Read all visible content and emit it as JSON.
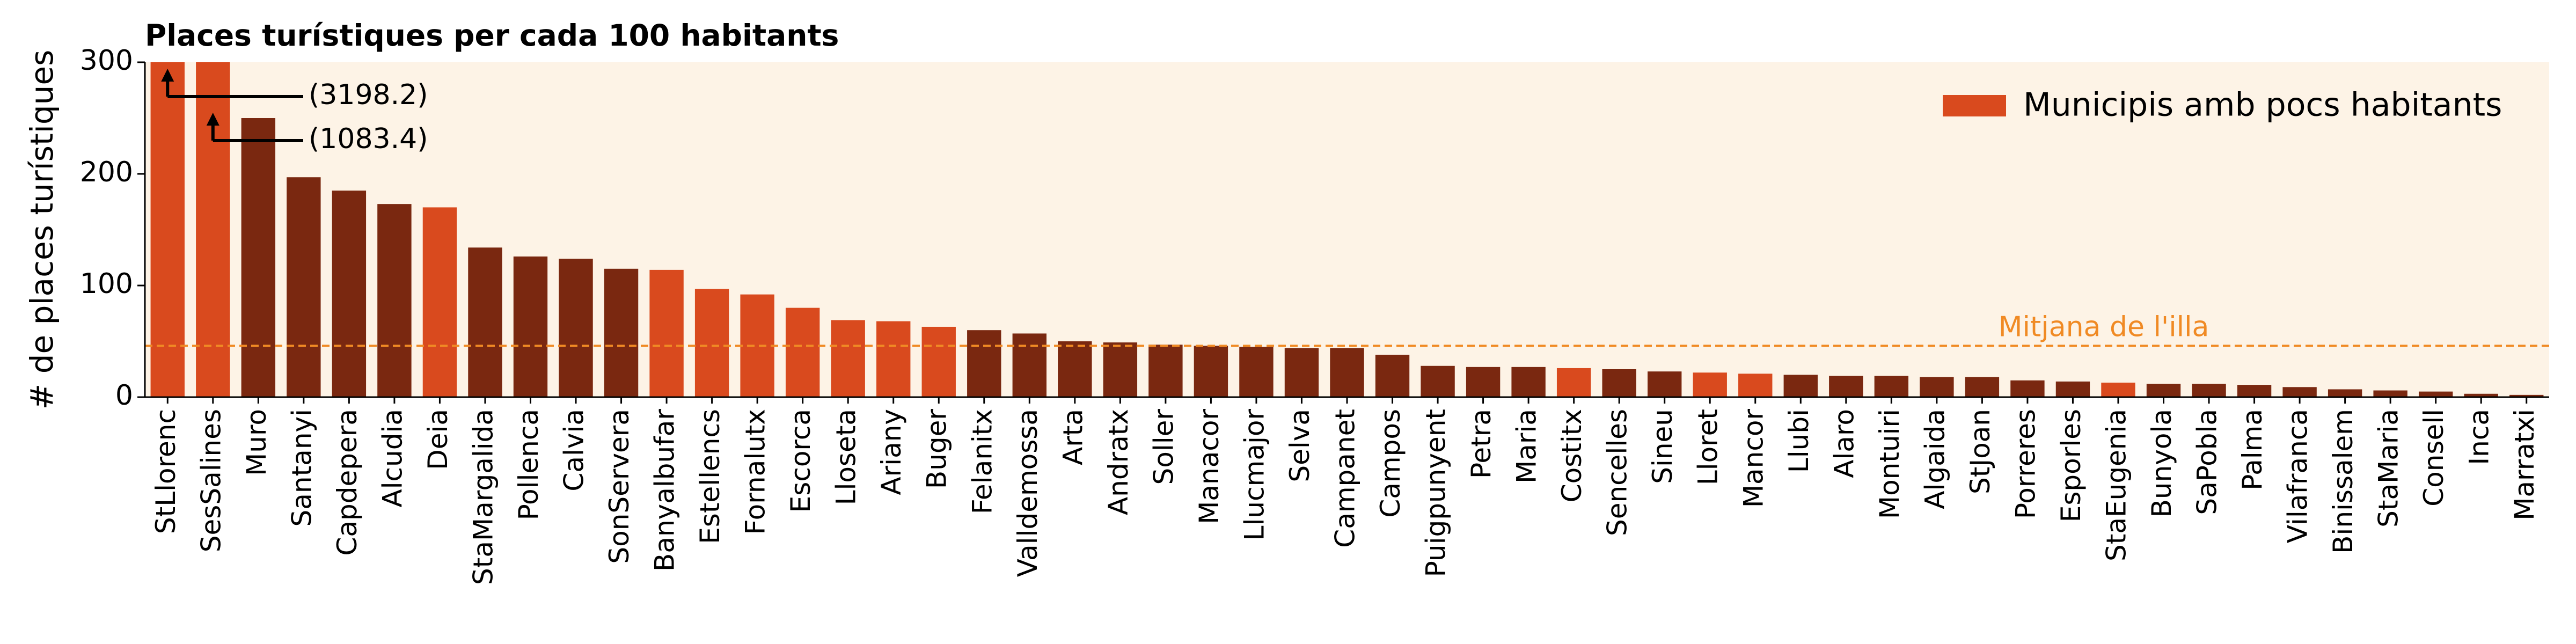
{
  "chart_data": {
    "type": "bar",
    "title": "Places turístiques per cada 100 habitants",
    "y_label": "# de places turístiques",
    "categories": [
      "StLlorenc",
      "SesSalines",
      "Muro",
      "Santanyi",
      "Capdepera",
      "Alcudia",
      "Deia",
      "StaMargalida",
      "Pollenca",
      "Calvia",
      "SonServera",
      "Banyalbufar",
      "Estellencs",
      "Fornalutx",
      "Escorca",
      "Lloseta",
      "Ariany",
      "Buger",
      "Felanitx",
      "Valldemossa",
      "Arta",
      "Andratx",
      "Soller",
      "Manacor",
      "Llucmajor",
      "Selva",
      "Campanet",
      "Campos",
      "Puigpunyent",
      "Petra",
      "Maria",
      "Costitx",
      "Sencelles",
      "Sineu",
      "Lloret",
      "Mancor",
      "Llubi",
      "Alaro",
      "Montuiri",
      "Algaida",
      "StJoan",
      "Porreres",
      "Esporles",
      "StaEugenia",
      "Bunyola",
      "SaPobla",
      "Palma",
      "Vilafranca",
      "Binissalem",
      "StaMaria",
      "Consell",
      "Inca",
      "Marratxi"
    ],
    "values": [
      3198.2,
      1083.4,
      250,
      197,
      185,
      173,
      170,
      134,
      126,
      124,
      115,
      114,
      97,
      92,
      80,
      69,
      68,
      63,
      60,
      57,
      50,
      49,
      47,
      46,
      45,
      44,
      44,
      38,
      28,
      27,
      27,
      26,
      25,
      23,
      22,
      21,
      20,
      19,
      19,
      18,
      18,
      15,
      14,
      13,
      12,
      12,
      11,
      9,
      7,
      6,
      5,
      3,
      2
    ],
    "value_labels": [
      "(3198.2)",
      "(1083.4)",
      null,
      null,
      null,
      null,
      null,
      null,
      null,
      null,
      null,
      null,
      null,
      null,
      null,
      null,
      null,
      null,
      null,
      null,
      null,
      null,
      null,
      null,
      null,
      null,
      null,
      null,
      null,
      null,
      null,
      null,
      null,
      null,
      null,
      null,
      null,
      null,
      null,
      null,
      null,
      null,
      null,
      null,
      null,
      null,
      null,
      null,
      null,
      null,
      null,
      null,
      null
    ],
    "highlight": [
      true,
      true,
      false,
      false,
      false,
      false,
      true,
      false,
      false,
      false,
      false,
      true,
      true,
      true,
      true,
      true,
      true,
      true,
      false,
      false,
      false,
      false,
      false,
      false,
      false,
      false,
      false,
      false,
      false,
      false,
      false,
      true,
      false,
      false,
      true,
      true,
      false,
      false,
      false,
      false,
      false,
      false,
      false,
      true,
      false,
      false,
      false,
      false,
      false,
      false,
      false,
      false,
      false
    ],
    "color": "#7a2810",
    "highlight_color": "#d94a1e",
    "legend": {
      "label": "Municipis amb pocs habitants",
      "position": "upper right"
    },
    "reference_line": {
      "label": "Mitjana de l'illa",
      "value": 46,
      "color": "#f08a24"
    },
    "background": "#fdf3e6",
    "ylim": [
      0,
      300
    ],
    "yticks": [
      0,
      100,
      200,
      300
    ]
  }
}
